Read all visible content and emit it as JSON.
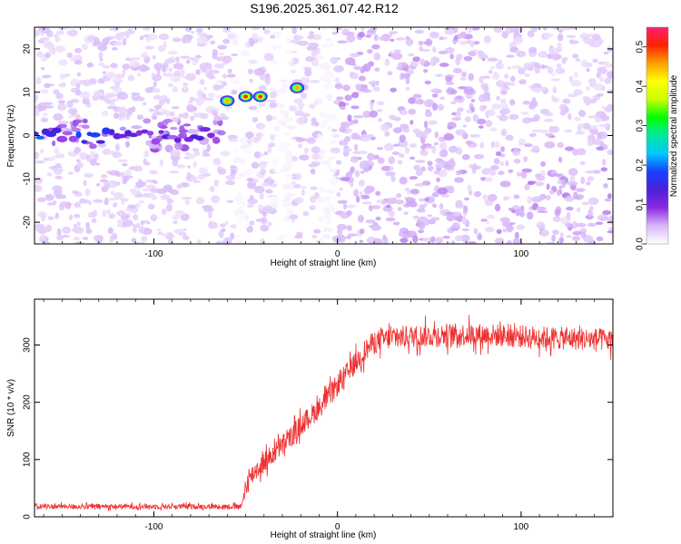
{
  "title": "S196.2025.361.07.42.R12",
  "chart_data": [
    {
      "type": "heatmap",
      "name": "spectrogram",
      "xlabel": "Height of straight line (km)",
      "ylabel": "Frequency (Hz)",
      "xlim": [
        -165,
        150
      ],
      "ylim": [
        -25,
        25
      ],
      "xticks": [
        -100,
        0,
        100
      ],
      "yticks": [
        -20,
        -10,
        0,
        10,
        20
      ],
      "colorbar": {
        "label": "Normalized spectral amplitude",
        "range": [
          0,
          0.55
        ],
        "ticks": [
          0.0,
          0.1,
          0.2,
          0.3,
          0.4,
          0.5
        ],
        "colors": [
          "#ffffff",
          "#d8b8f8",
          "#8a2be2",
          "#4b20d8",
          "#1840ff",
          "#00c8ff",
          "#00e8a0",
          "#00ff00",
          "#c8ff00",
          "#ffff00",
          "#ffa000",
          "#ff2000",
          "#ff2070"
        ]
      },
      "features": [
        {
          "x": [
            -165,
            -65
          ],
          "freq": 0,
          "amplitude": 0.15,
          "description": "horizontal band"
        },
        {
          "x": -60,
          "freq": 8,
          "amplitude": 0.45
        },
        {
          "x": -50,
          "freq": 9,
          "amplitude": 0.5
        },
        {
          "x": -42,
          "freq": 9,
          "amplitude": 0.5
        },
        {
          "x": -22,
          "freq": 11,
          "amplitude": 0.45
        }
      ]
    },
    {
      "type": "line",
      "name": "snr",
      "xlabel": "Height of straight line (km)",
      "ylabel": "SNR (10 * v/v)",
      "xlim": [
        -165,
        150
      ],
      "ylim": [
        0,
        380
      ],
      "xticks": [
        -100,
        0,
        100
      ],
      "yticks": [
        0,
        100,
        200,
        300
      ],
      "color": "#ee3030",
      "series": [
        {
          "name": "SNR",
          "x": [
            -165,
            -150,
            -120,
            -90,
            -60,
            -52,
            -50,
            -45,
            -40,
            -35,
            -30,
            -25,
            -20,
            -15,
            -10,
            -5,
            0,
            5,
            10,
            15,
            20,
            25,
            30,
            40,
            60,
            80,
            100,
            120,
            140,
            150
          ],
          "values": [
            18,
            18,
            18,
            18,
            18,
            18,
            55,
            80,
            95,
            110,
            125,
            140,
            160,
            175,
            190,
            210,
            230,
            250,
            270,
            290,
            305,
            310,
            312,
            315,
            318,
            318,
            315,
            312,
            310,
            308
          ]
        }
      ]
    }
  ]
}
